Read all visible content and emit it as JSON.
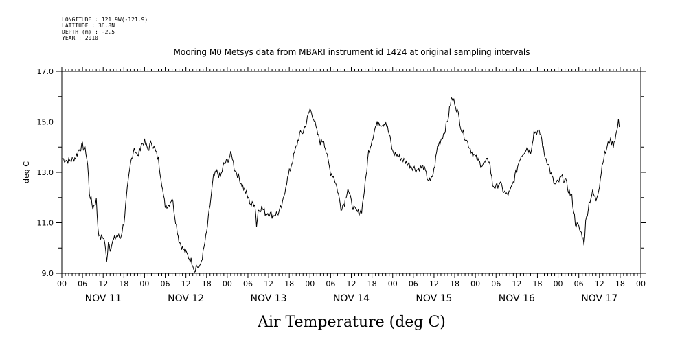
{
  "metadata": {
    "longitude": "LONGITUDE : 121.9W(-121.9)",
    "latitude": "LATITUDE : 36.8N",
    "depth": "DEPTH (m) : -2.5",
    "year": "YEAR : 2010"
  },
  "chart_data": {
    "type": "line",
    "title": "Mooring M0 Metsys data from MBARI instrument id 1424 at original sampling intervals",
    "xlabel": "Air Temperature (deg C)",
    "ylabel": "deg C",
    "ylim": [
      9.0,
      17.0
    ],
    "xlim_hours": [
      0,
      168
    ],
    "y_ticks": [
      9.0,
      11.0,
      13.0,
      15.0,
      17.0
    ],
    "y_tick_labels": [
      "9.0",
      "11.0",
      "13.0",
      "15.0",
      "17.0"
    ],
    "x_tick_labels": [
      "00",
      "06",
      "12",
      "18",
      "00",
      "06",
      "12",
      "18",
      "00",
      "06",
      "12",
      "18",
      "00",
      "06",
      "12",
      "18",
      "00",
      "06",
      "12",
      "18",
      "00",
      "06",
      "12",
      "18",
      "00",
      "06",
      "12",
      "18",
      "00"
    ],
    "day_labels": [
      "NOV 11",
      "NOV 12",
      "NOV 13",
      "NOV 14",
      "NOV 15",
      "NOV 16",
      "NOV 17"
    ],
    "grid": false,
    "series": [
      {
        "color": "#000000",
        "points": [
          [
            0,
            13.55
          ],
          [
            1,
            13.5
          ],
          [
            2,
            13.45
          ],
          [
            3,
            13.5
          ],
          [
            4,
            13.6
          ],
          [
            5,
            13.9
          ],
          [
            6,
            14.05
          ],
          [
            7,
            13.8
          ],
          [
            7.5,
            13.3
          ],
          [
            8,
            12.2
          ],
          [
            9,
            11.6
          ],
          [
            10,
            11.9
          ],
          [
            10.5,
            10.8
          ],
          [
            11,
            10.4
          ],
          [
            12,
            10.45
          ],
          [
            12.5,
            10.2
          ],
          [
            13,
            9.4
          ],
          [
            13.5,
            10.3
          ],
          [
            14,
            10.0
          ],
          [
            15,
            10.3
          ],
          [
            16,
            10.5
          ],
          [
            17,
            10.4
          ],
          [
            18,
            11.0
          ],
          [
            19,
            12.3
          ],
          [
            20,
            13.4
          ],
          [
            21,
            14.0
          ],
          [
            22,
            13.6
          ],
          [
            23,
            14.1
          ],
          [
            24,
            14.2
          ],
          [
            25,
            13.9
          ],
          [
            26,
            14.2
          ],
          [
            27,
            13.9
          ],
          [
            28,
            13.5
          ],
          [
            29,
            12.6
          ],
          [
            29.5,
            12.0
          ],
          [
            30,
            11.7
          ],
          [
            31,
            11.7
          ],
          [
            32,
            12.0
          ],
          [
            33,
            11.1
          ],
          [
            34,
            10.3
          ],
          [
            35,
            10.0
          ],
          [
            36,
            9.8
          ],
          [
            37,
            9.6
          ],
          [
            38,
            9.4
          ],
          [
            38.5,
            9.1
          ],
          [
            39,
            9.3
          ],
          [
            40,
            9.2
          ],
          [
            41,
            9.8
          ],
          [
            42,
            10.6
          ],
          [
            43,
            11.7
          ],
          [
            44,
            12.8
          ],
          [
            45,
            13.0
          ],
          [
            46,
            12.8
          ],
          [
            47,
            13.3
          ],
          [
            48,
            13.45
          ],
          [
            49,
            13.7
          ],
          [
            49.5,
            13.6
          ],
          [
            50,
            13.2
          ],
          [
            51,
            12.9
          ],
          [
            52,
            12.6
          ],
          [
            53,
            12.3
          ],
          [
            54,
            12.0
          ],
          [
            55,
            11.7
          ],
          [
            56,
            11.8
          ],
          [
            56.5,
            10.9
          ],
          [
            57,
            11.5
          ],
          [
            58,
            11.6
          ],
          [
            59,
            11.4
          ],
          [
            60,
            11.4
          ],
          [
            61,
            11.3
          ],
          [
            62,
            11.35
          ],
          [
            63,
            11.4
          ],
          [
            64,
            11.7
          ],
          [
            65,
            12.5
          ],
          [
            66,
            13.0
          ],
          [
            67,
            13.5
          ],
          [
            68,
            14.0
          ],
          [
            69,
            14.5
          ],
          [
            70,
            14.6
          ],
          [
            71,
            15.0
          ],
          [
            72,
            15.5
          ],
          [
            73,
            15.2
          ],
          [
            74,
            14.6
          ],
          [
            75,
            14.2
          ],
          [
            76,
            14.3
          ],
          [
            77,
            13.6
          ],
          [
            78,
            13.0
          ],
          [
            79,
            12.8
          ],
          [
            80,
            12.3
          ],
          [
            81,
            11.6
          ],
          [
            82,
            11.8
          ],
          [
            83,
            12.4
          ],
          [
            84,
            11.8
          ],
          [
            85,
            11.5
          ],
          [
            86,
            11.4
          ],
          [
            87,
            11.5
          ],
          [
            88,
            12.5
          ],
          [
            89,
            13.8
          ],
          [
            90,
            14.3
          ],
          [
            91,
            14.8
          ],
          [
            92,
            15.0
          ],
          [
            93,
            14.9
          ],
          [
            94,
            15.0
          ],
          [
            95,
            14.5
          ],
          [
            96,
            13.8
          ],
          [
            97,
            13.7
          ],
          [
            98,
            13.6
          ],
          [
            99,
            13.5
          ],
          [
            100,
            13.4
          ],
          [
            101,
            13.3
          ],
          [
            102,
            13.2
          ],
          [
            103,
            13.1
          ],
          [
            104,
            13.2
          ],
          [
            105,
            13.2
          ],
          [
            106,
            12.8
          ],
          [
            107,
            12.6
          ],
          [
            108,
            13.1
          ],
          [
            109,
            14.0
          ],
          [
            110,
            14.3
          ],
          [
            111,
            14.6
          ],
          [
            112,
            15.1
          ],
          [
            113,
            15.9
          ],
          [
            114,
            15.8
          ],
          [
            115,
            15.3
          ],
          [
            116,
            14.7
          ],
          [
            117,
            14.4
          ],
          [
            118,
            14.1
          ],
          [
            119,
            13.8
          ],
          [
            120,
            13.6
          ],
          [
            121,
            13.4
          ],
          [
            122,
            13.3
          ],
          [
            123,
            13.4
          ],
          [
            124,
            13.5
          ],
          [
            125,
            12.5
          ],
          [
            126,
            12.4
          ],
          [
            127,
            12.6
          ],
          [
            128,
            12.3
          ],
          [
            129,
            12.1
          ],
          [
            130,
            12.2
          ],
          [
            131,
            12.6
          ],
          [
            132,
            13.1
          ],
          [
            133,
            13.6
          ],
          [
            134,
            13.8
          ],
          [
            135,
            14.0
          ],
          [
            136,
            13.8
          ],
          [
            137,
            14.6
          ],
          [
            138,
            14.6
          ],
          [
            139,
            14.5
          ],
          [
            140,
            13.7
          ],
          [
            141,
            13.4
          ],
          [
            142,
            12.9
          ],
          [
            143,
            12.5
          ],
          [
            144,
            12.6
          ],
          [
            145,
            12.8
          ],
          [
            146,
            12.7
          ],
          [
            147,
            12.3
          ],
          [
            148,
            12.0
          ],
          [
            149,
            11.0
          ],
          [
            150,
            10.8
          ],
          [
            151,
            10.5
          ],
          [
            151.5,
            10.2
          ],
          [
            152,
            11.0
          ],
          [
            153,
            11.8
          ],
          [
            154,
            12.2
          ],
          [
            155,
            11.9
          ],
          [
            156,
            12.5
          ],
          [
            157,
            13.5
          ],
          [
            158,
            13.9
          ],
          [
            159,
            14.3
          ],
          [
            160,
            14.1
          ],
          [
            161,
            14.6
          ],
          [
            161.5,
            15.0
          ],
          [
            162,
            14.8
          ]
        ]
      }
    ]
  }
}
